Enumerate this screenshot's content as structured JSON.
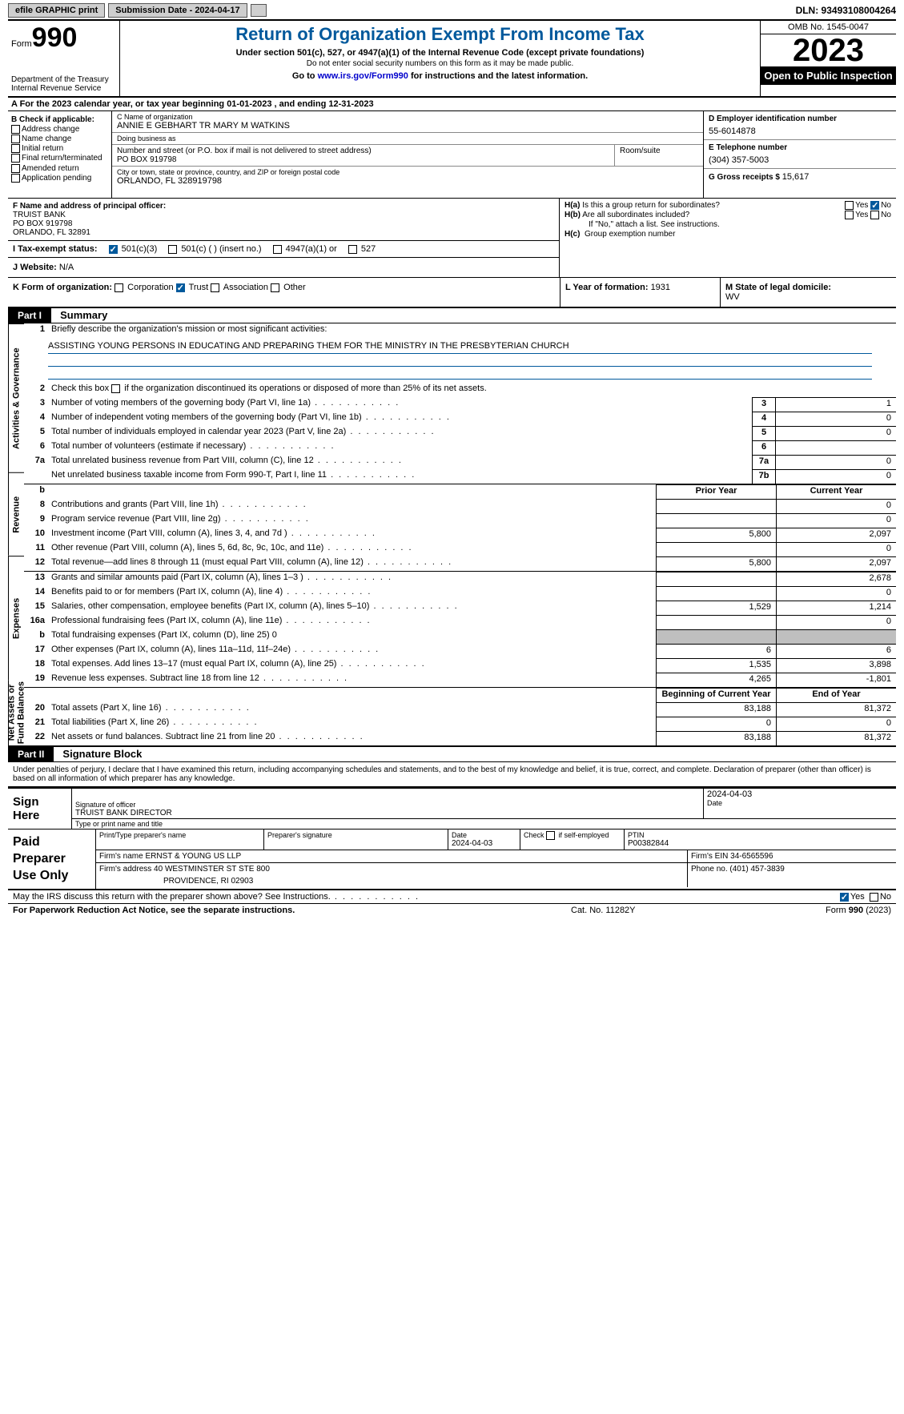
{
  "toolbar": {
    "efile_btn": "efile GRAPHIC print",
    "submission_label": "Submission Date - 2024-04-17",
    "dln_label": "DLN: 93493108004264"
  },
  "header": {
    "form_word": "Form",
    "form_number": "990",
    "dept": "Department of the Treasury Internal Revenue Service",
    "title": "Return of Organization Exempt From Income Tax",
    "sub1": "Under section 501(c), 527, or 4947(a)(1) of the Internal Revenue Code (except private foundations)",
    "sub2": "Do not enter social security numbers on this form as it may be made public.",
    "sub3_prefix": "Go to ",
    "sub3_link": "www.irs.gov/Form990",
    "sub3_suffix": " for instructions and the latest information.",
    "omb": "OMB No. 1545-0047",
    "year": "2023",
    "open": "Open to Public Inspection"
  },
  "line_a": "A For the 2023 calendar year, or tax year beginning 01-01-2023   , and ending 12-31-2023",
  "col_b": {
    "hdr": "B Check if applicable:",
    "items": [
      "Address change",
      "Name change",
      "Initial return",
      "Final return/terminated",
      "Amended return",
      "Application pending"
    ]
  },
  "col_c": {
    "name_lbl": "C Name of organization",
    "name_val": "ANNIE E GEBHART TR MARY M WATKINS",
    "dba_lbl": "Doing business as",
    "dba_val": "",
    "street_lbl": "Number and street (or P.O. box if mail is not delivered to street address)",
    "street_val": "PO BOX 919798",
    "room_lbl": "Room/suite",
    "city_lbl": "City or town, state or province, country, and ZIP or foreign postal code",
    "city_val": "ORLANDO, FL  328919798"
  },
  "col_d": {
    "ein_lbl": "D Employer identification number",
    "ein_val": "55-6014878",
    "tel_lbl": "E Telephone number",
    "tel_val": "(304) 357-5003",
    "gross_lbl": "G Gross receipts $ ",
    "gross_val": "15,617"
  },
  "f": {
    "lbl": "F  Name and address of principal officer:",
    "name": "TRUIST BANK",
    "street": "PO BOX 919798",
    "city": "ORLANDO, FL  32891"
  },
  "h": {
    "a_lbl": "H(a)  Is this a group return for subordinates?",
    "b_lbl": "H(b)  Are all subordinates included?",
    "b_note": "If \"No,\" attach a list. See instructions.",
    "c_lbl": "H(c)  Group exemption number ",
    "yes": "Yes",
    "no": "No"
  },
  "i": {
    "lbl": "I   Tax-exempt status:",
    "o1": "501(c)(3)",
    "o2": "501(c) (  ) (insert no.)",
    "o3": "4947(a)(1) or",
    "o4": "527"
  },
  "j": {
    "lbl": "J   Website: ",
    "val": "N/A"
  },
  "k": {
    "lbl": "K Form of organization:",
    "o1": "Corporation",
    "o2": "Trust",
    "o3": "Association",
    "o4": "Other"
  },
  "l": {
    "lbl": "L Year of formation: ",
    "val": "1931"
  },
  "m": {
    "lbl": "M State of legal domicile:",
    "val": "WV"
  },
  "part1": {
    "hdr": "Part I",
    "title": "Summary",
    "q1_lbl": "Briefly describe the organization's mission or most significant activities:",
    "q1_val": "ASSISTING YOUNG PERSONS IN EDUCATING AND PREPARING THEM FOR THE MINISTRY IN THE PRESBYTERIAN CHURCH",
    "q2": "Check this box      if the organization discontinued its operations or disposed of more than 25% of its net assets.",
    "tabs": {
      "t1": "Activities & Governance",
      "t2": "Revenue",
      "t3": "Expenses",
      "t4": "Net Assets or Fund Balances"
    },
    "prior_hdr": "Prior Year",
    "curr_hdr": "Current Year",
    "begin_hdr": "Beginning of Current Year",
    "end_hdr": "End of Year",
    "rows_gov": [
      {
        "n": "3",
        "d": "Number of voting members of the governing body (Part VI, line 1a)",
        "box": "3",
        "v": "1"
      },
      {
        "n": "4",
        "d": "Number of independent voting members of the governing body (Part VI, line 1b)",
        "box": "4",
        "v": "0"
      },
      {
        "n": "5",
        "d": "Total number of individuals employed in calendar year 2023 (Part V, line 2a)",
        "box": "5",
        "v": "0"
      },
      {
        "n": "6",
        "d": "Total number of volunteers (estimate if necessary)",
        "box": "6",
        "v": ""
      },
      {
        "n": "7a",
        "d": "Total unrelated business revenue from Part VIII, column (C), line 12",
        "box": "7a",
        "v": "0"
      },
      {
        "n": "",
        "d": "Net unrelated business taxable income from Form 990-T, Part I, line 11",
        "box": "7b",
        "v": "0"
      }
    ],
    "rows_rev": [
      {
        "n": "8",
        "d": "Contributions and grants (Part VIII, line 1h)",
        "p": "",
        "c": "0"
      },
      {
        "n": "9",
        "d": "Program service revenue (Part VIII, line 2g)",
        "p": "",
        "c": "0"
      },
      {
        "n": "10",
        "d": "Investment income (Part VIII, column (A), lines 3, 4, and 7d )",
        "p": "5,800",
        "c": "2,097"
      },
      {
        "n": "11",
        "d": "Other revenue (Part VIII, column (A), lines 5, 6d, 8c, 9c, 10c, and 11e)",
        "p": "",
        "c": "0"
      },
      {
        "n": "12",
        "d": "Total revenue—add lines 8 through 11 (must equal Part VIII, column (A), line 12)",
        "p": "5,800",
        "c": "2,097"
      }
    ],
    "rows_exp": [
      {
        "n": "13",
        "d": "Grants and similar amounts paid (Part IX, column (A), lines 1–3 )",
        "p": "",
        "c": "2,678"
      },
      {
        "n": "14",
        "d": "Benefits paid to or for members (Part IX, column (A), line 4)",
        "p": "",
        "c": "0"
      },
      {
        "n": "15",
        "d": "Salaries, other compensation, employee benefits (Part IX, column (A), lines 5–10)",
        "p": "1,529",
        "c": "1,214"
      },
      {
        "n": "16a",
        "d": "Professional fundraising fees (Part IX, column (A), line 11e)",
        "p": "",
        "c": "0"
      },
      {
        "n": "b",
        "d": "Total fundraising expenses (Part IX, column (D), line 25) 0",
        "p": "grey",
        "c": "grey"
      },
      {
        "n": "17",
        "d": "Other expenses (Part IX, column (A), lines 11a–11d, 11f–24e)",
        "p": "6",
        "c": "6"
      },
      {
        "n": "18",
        "d": "Total expenses. Add lines 13–17 (must equal Part IX, column (A), line 25)",
        "p": "1,535",
        "c": "3,898"
      },
      {
        "n": "19",
        "d": "Revenue less expenses. Subtract line 18 from line 12",
        "p": "4,265",
        "c": "-1,801"
      }
    ],
    "rows_net": [
      {
        "n": "20",
        "d": "Total assets (Part X, line 16)",
        "p": "83,188",
        "c": "81,372"
      },
      {
        "n": "21",
        "d": "Total liabilities (Part X, line 26)",
        "p": "0",
        "c": "0"
      },
      {
        "n": "22",
        "d": "Net assets or fund balances. Subtract line 21 from line 20",
        "p": "83,188",
        "c": "81,372"
      }
    ]
  },
  "part2": {
    "hdr": "Part II",
    "title": "Signature Block",
    "decl": "Under penalties of perjury, I declare that I have examined this return, including accompanying schedules and statements, and to the best of my knowledge and belief, it is true, correct, and complete. Declaration of preparer (other than officer) is based on all information of which preparer has any knowledge."
  },
  "sign": {
    "lbl": "Sign Here",
    "sig_lbl": "Signature of officer",
    "date_lbl": "Date",
    "date_val": "2024-04-03",
    "name_lbl": "Type or print name and title",
    "name_val": "TRUIST BANK  DIRECTOR"
  },
  "prep": {
    "lbl": "Paid Preparer Use Only",
    "name_lbl": "Print/Type preparer's name",
    "sig_lbl": "Preparer's signature",
    "date_lbl": "Date",
    "date_val": "2024-04-03",
    "self_lbl": "Check       if self-employed",
    "ptin_lbl": "PTIN",
    "ptin_val": "P00382844",
    "firm_name_lbl": "Firm's name   ",
    "firm_name_val": "ERNST & YOUNG US LLP",
    "firm_ein_lbl": "Firm's EIN  ",
    "firm_ein_val": "34-6565596",
    "firm_addr_lbl": "Firm's address ",
    "firm_addr_val1": "40 WESTMINSTER ST STE 800",
    "firm_addr_val2": "PROVIDENCE, RI  02903",
    "phone_lbl": "Phone no. ",
    "phone_val": "(401) 457-3839"
  },
  "discuss": {
    "q": "May the IRS discuss this return with the preparer shown above? See Instructions.",
    "yes": "Yes",
    "no": "No"
  },
  "footer": {
    "l": "For Paperwork Reduction Act Notice, see the separate instructions.",
    "m": "Cat. No. 11282Y",
    "r_form": "Form ",
    "r_num": "990",
    "r_year": " (2023)"
  },
  "colors": {
    "blue": "#00599c",
    "black": "#000000",
    "grey": "#bfbfbf",
    "btn_grey": "#cfcfcf",
    "link": "#0000cc"
  }
}
